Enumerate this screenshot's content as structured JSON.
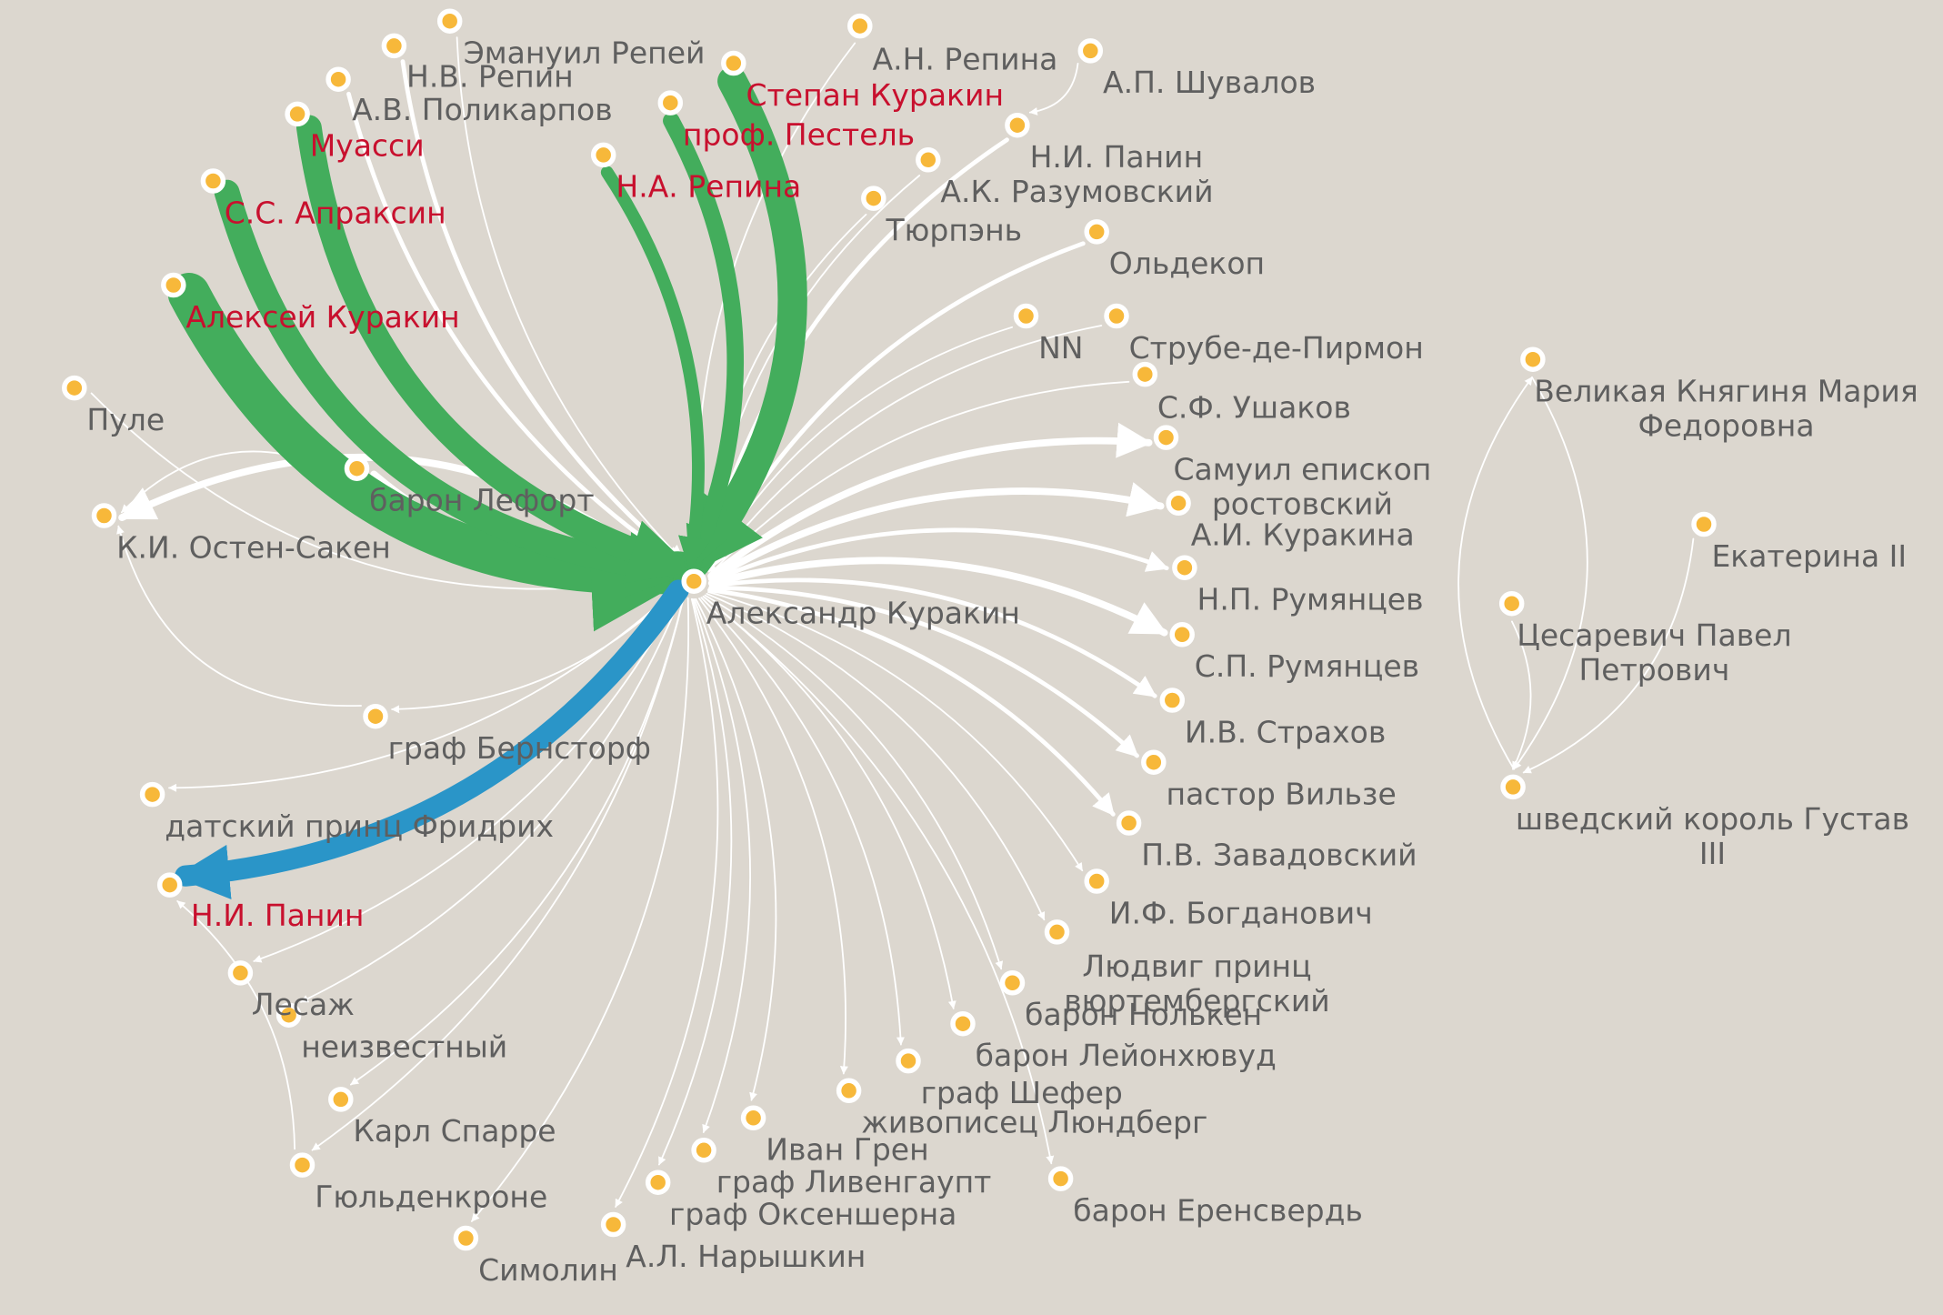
{
  "colors": {
    "background": "#dcd7cf",
    "edge_default": "#ffffff",
    "edge_to_center": "#43ad5c",
    "edge_from_center": "#2a95c8",
    "node_fill": "#f7b83a",
    "node_stroke": "#ffffff",
    "label_default": "#5f5f5f",
    "label_highlight": "#c8102e"
  },
  "center": "Александр Куракин",
  "nodes": [
    {
      "id": "kurakin_alexander",
      "label": "Александр Куракин"
    },
    {
      "id": "repei",
      "label": "Эмануил Репей"
    },
    {
      "id": "repin_nv",
      "label": "Н.В. Репин"
    },
    {
      "id": "polikarpov",
      "label": "А.В. Поликарпов"
    },
    {
      "id": "muassi",
      "label": "Муасси",
      "highlight": true
    },
    {
      "id": "apraksin",
      "label": "С.С. Апраксин",
      "highlight": true
    },
    {
      "id": "kurakin_aleksei",
      "label": "Алексей Куракин",
      "highlight": true
    },
    {
      "id": "pule",
      "label": "Пуле"
    },
    {
      "id": "lefort",
      "label": "барон Лефорт"
    },
    {
      "id": "osten",
      "label": "К.И. Остен-Сакен"
    },
    {
      "id": "bernstorf",
      "label": "граф Бернсторф"
    },
    {
      "id": "fridrih",
      "label": "датский принц Фридрих"
    },
    {
      "id": "panin_ni_red",
      "label": "Н.И. Панин",
      "highlight": true
    },
    {
      "id": "lesazh",
      "label": "Лесаж"
    },
    {
      "id": "neizvestny",
      "label": "неизвестный"
    },
    {
      "id": "sparre",
      "label": "Карл Спарре"
    },
    {
      "id": "gyuldenkrone",
      "label": "Гюльденкроне"
    },
    {
      "id": "simolin",
      "label": "Симолин"
    },
    {
      "id": "naryshkin",
      "label": "А.Л. Нарышкин"
    },
    {
      "id": "oksensherna",
      "label": "граф Оксеншерна"
    },
    {
      "id": "livengaupt",
      "label": "граф Ливенгаупт"
    },
    {
      "id": "gren",
      "label": "Иван Грен"
    },
    {
      "id": "lyundberg",
      "label": "живописец Люндберг"
    },
    {
      "id": "shefer",
      "label": "граф Шефер"
    },
    {
      "id": "erensverd",
      "label": "барон Еренсвердь"
    },
    {
      "id": "leionhuvud",
      "label": "барон Лейонхювуд"
    },
    {
      "id": "nolken",
      "label": "барон Нолькен"
    },
    {
      "id": "lyudvig",
      "label": "Людвиг принц вюртембергский"
    },
    {
      "id": "bogdanovich",
      "label": "И.Ф. Богданович"
    },
    {
      "id": "zavadovsky",
      "label": "П.В. Завадовский"
    },
    {
      "id": "vilze",
      "label": "пастор Вильзе"
    },
    {
      "id": "strahov",
      "label": "И.В. Страхов"
    },
    {
      "id": "rumyantsev_sp",
      "label": "С.П. Румянцев"
    },
    {
      "id": "rumyantsev_np",
      "label": "Н.П. Румянцев"
    },
    {
      "id": "kurakina_ai",
      "label": "А.И. Куракина"
    },
    {
      "id": "samuil",
      "label": "Самуил епископ ростовский"
    },
    {
      "id": "ushakov",
      "label": "С.Ф. Ушаков"
    },
    {
      "id": "strube",
      "label": "Струбе-де-Пирмон"
    },
    {
      "id": "nn",
      "label": "NN"
    },
    {
      "id": "oldekop",
      "label": "Ольдекоп"
    },
    {
      "id": "razumovsky",
      "label": "А.К. Разумовский"
    },
    {
      "id": "panin_ni",
      "label": "Н.И. Панин"
    },
    {
      "id": "shuvalov",
      "label": "А.П. Шувалов"
    },
    {
      "id": "repina_an",
      "label": "А.Н. Репина"
    },
    {
      "id": "tyurpen",
      "label": "Тюрпэнь"
    },
    {
      "id": "kurakin_stepan",
      "label": "Степан Куракин",
      "highlight": true
    },
    {
      "id": "pestel",
      "label": "проф. Пестель",
      "highlight": true
    },
    {
      "id": "repina_na",
      "label": "Н.А. Репина",
      "highlight": true
    },
    {
      "id": "maria",
      "label": "Великая Княгиня Мария Федоровна"
    },
    {
      "id": "ekaterina",
      "label": "Екатерина II"
    },
    {
      "id": "pavel",
      "label": "Цесаревич Павел Петрович"
    },
    {
      "id": "gustav",
      "label": "шведский король Густав III"
    }
  ],
  "edges": [
    {
      "source": "kurakin_aleksei",
      "target": "kurakin_alexander",
      "kind": "to_center",
      "weight": 10
    },
    {
      "source": "apraksin",
      "target": "kurakin_alexander",
      "kind": "to_center",
      "weight": 6
    },
    {
      "source": "muassi",
      "target": "kurakin_alexander",
      "kind": "to_center",
      "weight": 6
    },
    {
      "source": "kurakin_stepan",
      "target": "kurakin_alexander",
      "kind": "to_center",
      "weight": 7
    },
    {
      "source": "pestel",
      "target": "kurakin_alexander",
      "kind": "to_center",
      "weight": 4
    },
    {
      "source": "repina_na",
      "target": "kurakin_alexander",
      "kind": "to_center",
      "weight": 3
    },
    {
      "source": "kurakin_alexander",
      "target": "panin_ni_red",
      "kind": "from_center",
      "weight": 5
    },
    {
      "source": "repei",
      "target": "kurakin_alexander",
      "kind": "plain",
      "weight": 1
    },
    {
      "source": "repin_nv",
      "target": "kurakin_alexander",
      "kind": "plain",
      "weight": 2
    },
    {
      "source": "polikarpov",
      "target": "kurakin_alexander",
      "kind": "plain",
      "weight": 2
    },
    {
      "source": "repina_an",
      "target": "kurakin_alexander",
      "kind": "plain",
      "weight": 1
    },
    {
      "source": "tyurpen",
      "target": "kurakin_alexander",
      "kind": "plain",
      "weight": 1
    },
    {
      "source": "razumovsky",
      "target": "kurakin_alexander",
      "kind": "plain",
      "weight": 1
    },
    {
      "source": "panin_ni",
      "target": "kurakin_alexander",
      "kind": "plain",
      "weight": 2
    },
    {
      "source": "shuvalov",
      "target": "panin_ni",
      "kind": "plain",
      "weight": 1
    },
    {
      "source": "oldekop",
      "target": "kurakin_alexander",
      "kind": "plain",
      "weight": 2
    },
    {
      "source": "nn",
      "target": "kurakin_alexander",
      "kind": "plain",
      "weight": 1
    },
    {
      "source": "strube",
      "target": "kurakin_alexander",
      "kind": "plain",
      "weight": 1
    },
    {
      "source": "ushakov",
      "target": "kurakin_alexander",
      "kind": "plain",
      "weight": 1
    },
    {
      "source": "kurakin_alexander",
      "target": "samuil",
      "kind": "plain",
      "weight": 3
    },
    {
      "source": "kurakin_alexander",
      "target": "kurakina_ai",
      "kind": "plain",
      "weight": 3
    },
    {
      "source": "kurakin_alexander",
      "target": "rumyantsev_np",
      "kind": "plain",
      "weight": 3
    },
    {
      "source": "kurakin_alexander",
      "target": "rumyantsev_sp",
      "kind": "plain",
      "weight": 2
    },
    {
      "source": "kurakin_alexander",
      "target": "strahov",
      "kind": "plain",
      "weight": 2
    },
    {
      "source": "kurakin_alexander",
      "target": "vilze",
      "kind": "plain",
      "weight": 2
    },
    {
      "source": "kurakin_alexander",
      "target": "zavadovsky",
      "kind": "plain",
      "weight": 2
    },
    {
      "source": "kurakin_alexander",
      "target": "bogdanovich",
      "kind": "plain",
      "weight": 1
    },
    {
      "source": "kurakin_alexander",
      "target": "lyudvig",
      "kind": "plain",
      "weight": 1
    },
    {
      "source": "kurakin_alexander",
      "target": "nolken",
      "kind": "plain",
      "weight": 1
    },
    {
      "source": "kurakin_alexander",
      "target": "leionhuvud",
      "kind": "plain",
      "weight": 1
    },
    {
      "source": "kurakin_alexander",
      "target": "erensverd",
      "kind": "plain",
      "weight": 1
    },
    {
      "source": "kurakin_alexander",
      "target": "shefer",
      "kind": "plain",
      "weight": 1
    },
    {
      "source": "kurakin_alexander",
      "target": "lyundberg",
      "kind": "plain",
      "weight": 1
    },
    {
      "source": "kurakin_alexander",
      "target": "gren",
      "kind": "plain",
      "weight": 1
    },
    {
      "source": "kurakin_alexander",
      "target": "livengaupt",
      "kind": "plain",
      "weight": 1
    },
    {
      "source": "kurakin_alexander",
      "target": "oksensherna",
      "kind": "plain",
      "weight": 1
    },
    {
      "source": "kurakin_alexander",
      "target": "naryshkin",
      "kind": "plain",
      "weight": 1
    },
    {
      "source": "kurakin_alexander",
      "target": "simolin",
      "kind": "plain",
      "weight": 1
    },
    {
      "source": "kurakin_alexander",
      "target": "gyuldenkrone",
      "kind": "plain",
      "weight": 1
    },
    {
      "source": "kurakin_alexander",
      "target": "sparre",
      "kind": "plain",
      "weight": 1
    },
    {
      "source": "kurakin_alexander",
      "target": "neizvestny",
      "kind": "plain",
      "weight": 1
    },
    {
      "source": "kurakin_alexander",
      "target": "lesazh",
      "kind": "plain",
      "weight": 1
    },
    {
      "source": "kurakin_alexander",
      "target": "fridrih",
      "kind": "plain",
      "weight": 1
    },
    {
      "source": "kurakin_alexander",
      "target": "bernstorf",
      "kind": "plain",
      "weight": 1
    },
    {
      "source": "bernstorf",
      "target": "osten",
      "kind": "plain",
      "weight": 1
    },
    {
      "source": "kurakin_alexander",
      "target": "osten",
      "kind": "plain",
      "weight": 3
    },
    {
      "source": "lefort",
      "target": "kurakin_alexander",
      "kind": "plain",
      "weight": 3
    },
    {
      "source": "lefort",
      "target": "osten",
      "kind": "plain",
      "weight": 1
    },
    {
      "source": "pule",
      "target": "kurakin_alexander",
      "kind": "plain",
      "weight": 1
    },
    {
      "source": "gyuldenkrone",
      "target": "panin_ni_red",
      "kind": "plain",
      "weight": 1
    },
    {
      "source": "maria",
      "target": "gustav",
      "kind": "plain",
      "weight": 1
    },
    {
      "source": "gustav",
      "target": "maria",
      "kind": "plain",
      "weight": 1
    },
    {
      "source": "ekaterina",
      "target": "gustav",
      "kind": "plain",
      "weight": 1
    },
    {
      "source": "pavel",
      "target": "gustav",
      "kind": "plain",
      "weight": 1
    }
  ]
}
